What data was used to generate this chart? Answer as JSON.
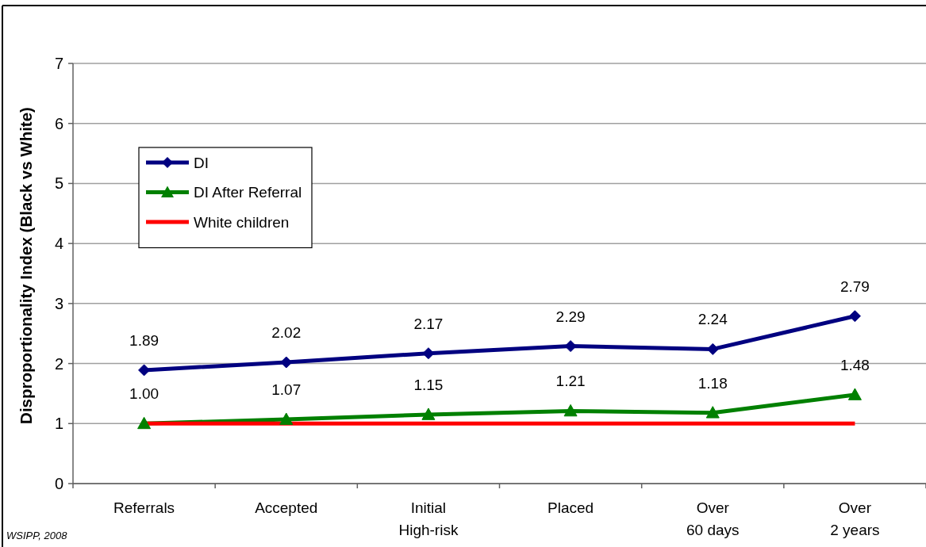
{
  "chart_data": {
    "type": "line",
    "categories": [
      "Referrals",
      "Accepted",
      "Initial\nHigh-risk",
      "Placed",
      "Over\n60 days",
      "Over\n2 years"
    ],
    "series": [
      {
        "name": "DI",
        "color": "#000080",
        "marker": "diamond",
        "values": [
          1.89,
          2.02,
          2.17,
          2.29,
          2.24,
          2.79
        ],
        "value_labels": [
          "1.89",
          "2.02",
          "2.17",
          "2.29",
          "2.24",
          "2.79"
        ]
      },
      {
        "name": "DI After Referral",
        "color": "#008000",
        "marker": "triangle",
        "values": [
          1.0,
          1.07,
          1.15,
          1.21,
          1.18,
          1.48
        ],
        "value_labels": [
          "1.00",
          "1.07",
          "1.15",
          "1.21",
          "1.18",
          "1.48"
        ]
      },
      {
        "name": "White children",
        "color": "#ff0000",
        "marker": "none",
        "values": [
          1,
          1,
          1,
          1,
          1,
          1
        ]
      }
    ],
    "ylabel": "Disproportionality Index (Black vs White)",
    "ylim": [
      0,
      7
    ],
    "yticks": [
      0,
      1,
      2,
      3,
      4,
      5,
      6,
      7
    ],
    "grid": "y",
    "legend": "top left",
    "annotations": [
      "WSIPP, 2008"
    ]
  }
}
